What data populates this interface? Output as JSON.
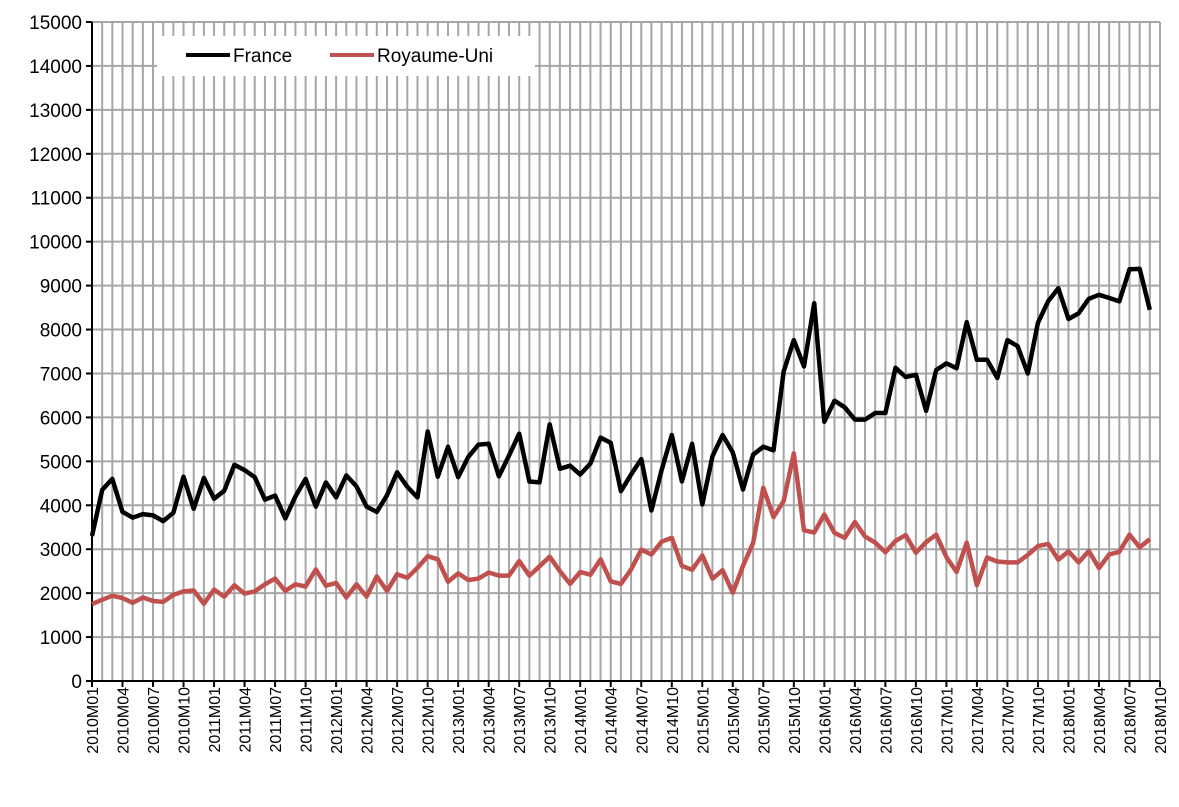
{
  "chart_data": {
    "type": "line",
    "title": "",
    "xlabel": "",
    "ylabel": "",
    "ylim": [
      0,
      15000
    ],
    "yticks": [
      0,
      1000,
      2000,
      3000,
      4000,
      5000,
      6000,
      7000,
      8000,
      9000,
      10000,
      11000,
      12000,
      13000,
      14000,
      15000
    ],
    "grid": true,
    "legend": "top-left",
    "x_tick_labels": [
      "2010M01",
      "2010M04",
      "2010M07",
      "2010M10",
      "2011M01",
      "2011M04",
      "2011M07",
      "2011M10",
      "2012M01",
      "2012M04",
      "2012M07",
      "2012M10",
      "2013M01",
      "2013M04",
      "2013M07",
      "2013M10",
      "2014M01",
      "2014M04",
      "2014M07",
      "2014M10",
      "2015M01",
      "2015M04",
      "2015M07",
      "2015M10",
      "2016M01",
      "2016M04",
      "2016M07",
      "2016M10",
      "2017M01",
      "2017M04",
      "2017M07",
      "2017M10",
      "2018M01",
      "2018M04",
      "2018M07",
      "2018M10"
    ],
    "x_start": "2010M01",
    "x_end": "2018M10",
    "series": [
      {
        "name": "France",
        "color": "#000000",
        "values": [
          3300,
          4350,
          4600,
          3850,
          3720,
          3800,
          3770,
          3640,
          3830,
          4650,
          3920,
          4620,
          4150,
          4330,
          4920,
          4800,
          4640,
          4130,
          4220,
          3700,
          4200,
          4600,
          3970,
          4520,
          4180,
          4680,
          4430,
          3970,
          3850,
          4230,
          4750,
          4420,
          4180,
          5680,
          4650,
          5330,
          4640,
          5100,
          5380,
          5400,
          4660,
          5130,
          5630,
          4540,
          4520,
          5840,
          4830,
          4900,
          4700,
          4950,
          5540,
          5420,
          4320,
          4700,
          5050,
          3880,
          4800,
          5600,
          4540,
          5400,
          4020,
          5120,
          5600,
          5200,
          4360,
          5150,
          5330,
          5250,
          7050,
          7760,
          7160,
          8600,
          5900,
          6380,
          6230,
          5950,
          5950,
          6100,
          6100,
          7130,
          6920,
          6970,
          6150,
          7080,
          7230,
          7120,
          8170,
          7310,
          7310,
          6900,
          7760,
          7620,
          7000,
          8150,
          8640,
          8940,
          8240,
          8370,
          8700,
          8790,
          8720,
          8640,
          9370,
          9380,
          8450
        ]
      },
      {
        "name": "Royaume-Uni",
        "color": "#C0504D",
        "values": [
          1750,
          1850,
          1940,
          1890,
          1780,
          1900,
          1820,
          1800,
          1960,
          2040,
          2060,
          1760,
          2080,
          1920,
          2180,
          1990,
          2040,
          2200,
          2330,
          2050,
          2200,
          2150,
          2540,
          2170,
          2230,
          1900,
          2200,
          1920,
          2380,
          2050,
          2430,
          2350,
          2580,
          2840,
          2770,
          2260,
          2450,
          2300,
          2330,
          2470,
          2400,
          2400,
          2730,
          2400,
          2610,
          2830,
          2500,
          2210,
          2480,
          2420,
          2770,
          2270,
          2210,
          2540,
          2990,
          2880,
          3170,
          3260,
          2620,
          2530,
          2860,
          2330,
          2520,
          2010,
          2620,
          3140,
          4400,
          3730,
          4100,
          5180,
          3430,
          3380,
          3790,
          3370,
          3260,
          3620,
          3290,
          3150,
          2930,
          3190,
          3320,
          2920,
          3160,
          3330,
          2820,
          2480,
          3150,
          2180,
          2810,
          2720,
          2700,
          2700,
          2870,
          3070,
          3120,
          2760,
          2950,
          2700,
          2960,
          2570,
          2880,
          2940,
          3330,
          3040,
          3230
        ]
      }
    ]
  }
}
